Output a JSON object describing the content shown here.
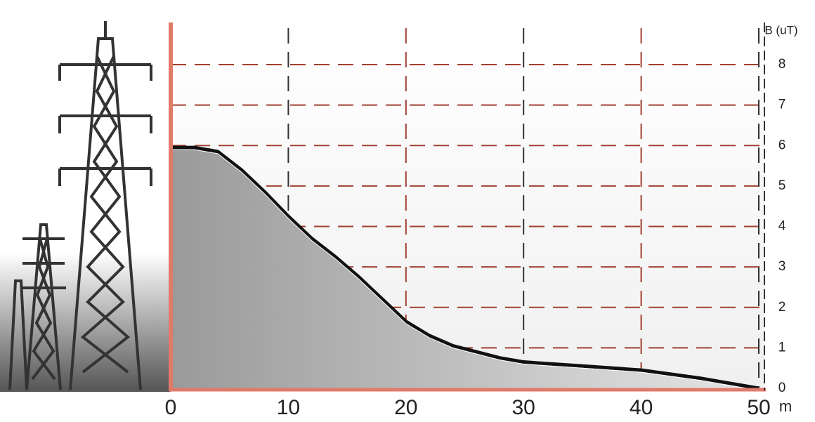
{
  "chart_data": {
    "type": "area",
    "x_label": "m",
    "y_label": "B (uT)",
    "x": [
      0,
      2,
      4,
      6,
      8,
      10,
      12,
      14,
      16,
      18,
      20,
      22,
      24,
      26,
      28,
      30,
      35,
      40,
      45,
      50
    ],
    "series": [
      {
        "color": "#111111",
        "values": [
          5.95,
          5.95,
          5.85,
          5.4,
          4.85,
          4.25,
          3.7,
          3.25,
          2.75,
          2.2,
          1.65,
          1.3,
          1.05,
          0.9,
          0.75,
          0.65,
          0.55,
          0.45,
          0.25,
          0
        ]
      }
    ],
    "xlim": [
      0,
      50
    ],
    "xticks": [
      0,
      10,
      20,
      30,
      40,
      50
    ],
    "ylim": [
      0,
      8
    ],
    "yticks": [
      0,
      1,
      2,
      3,
      4,
      5,
      6,
      7,
      8
    ],
    "grid": true,
    "axis_color": "#e07a6a",
    "grid_color": "#a04030"
  }
}
